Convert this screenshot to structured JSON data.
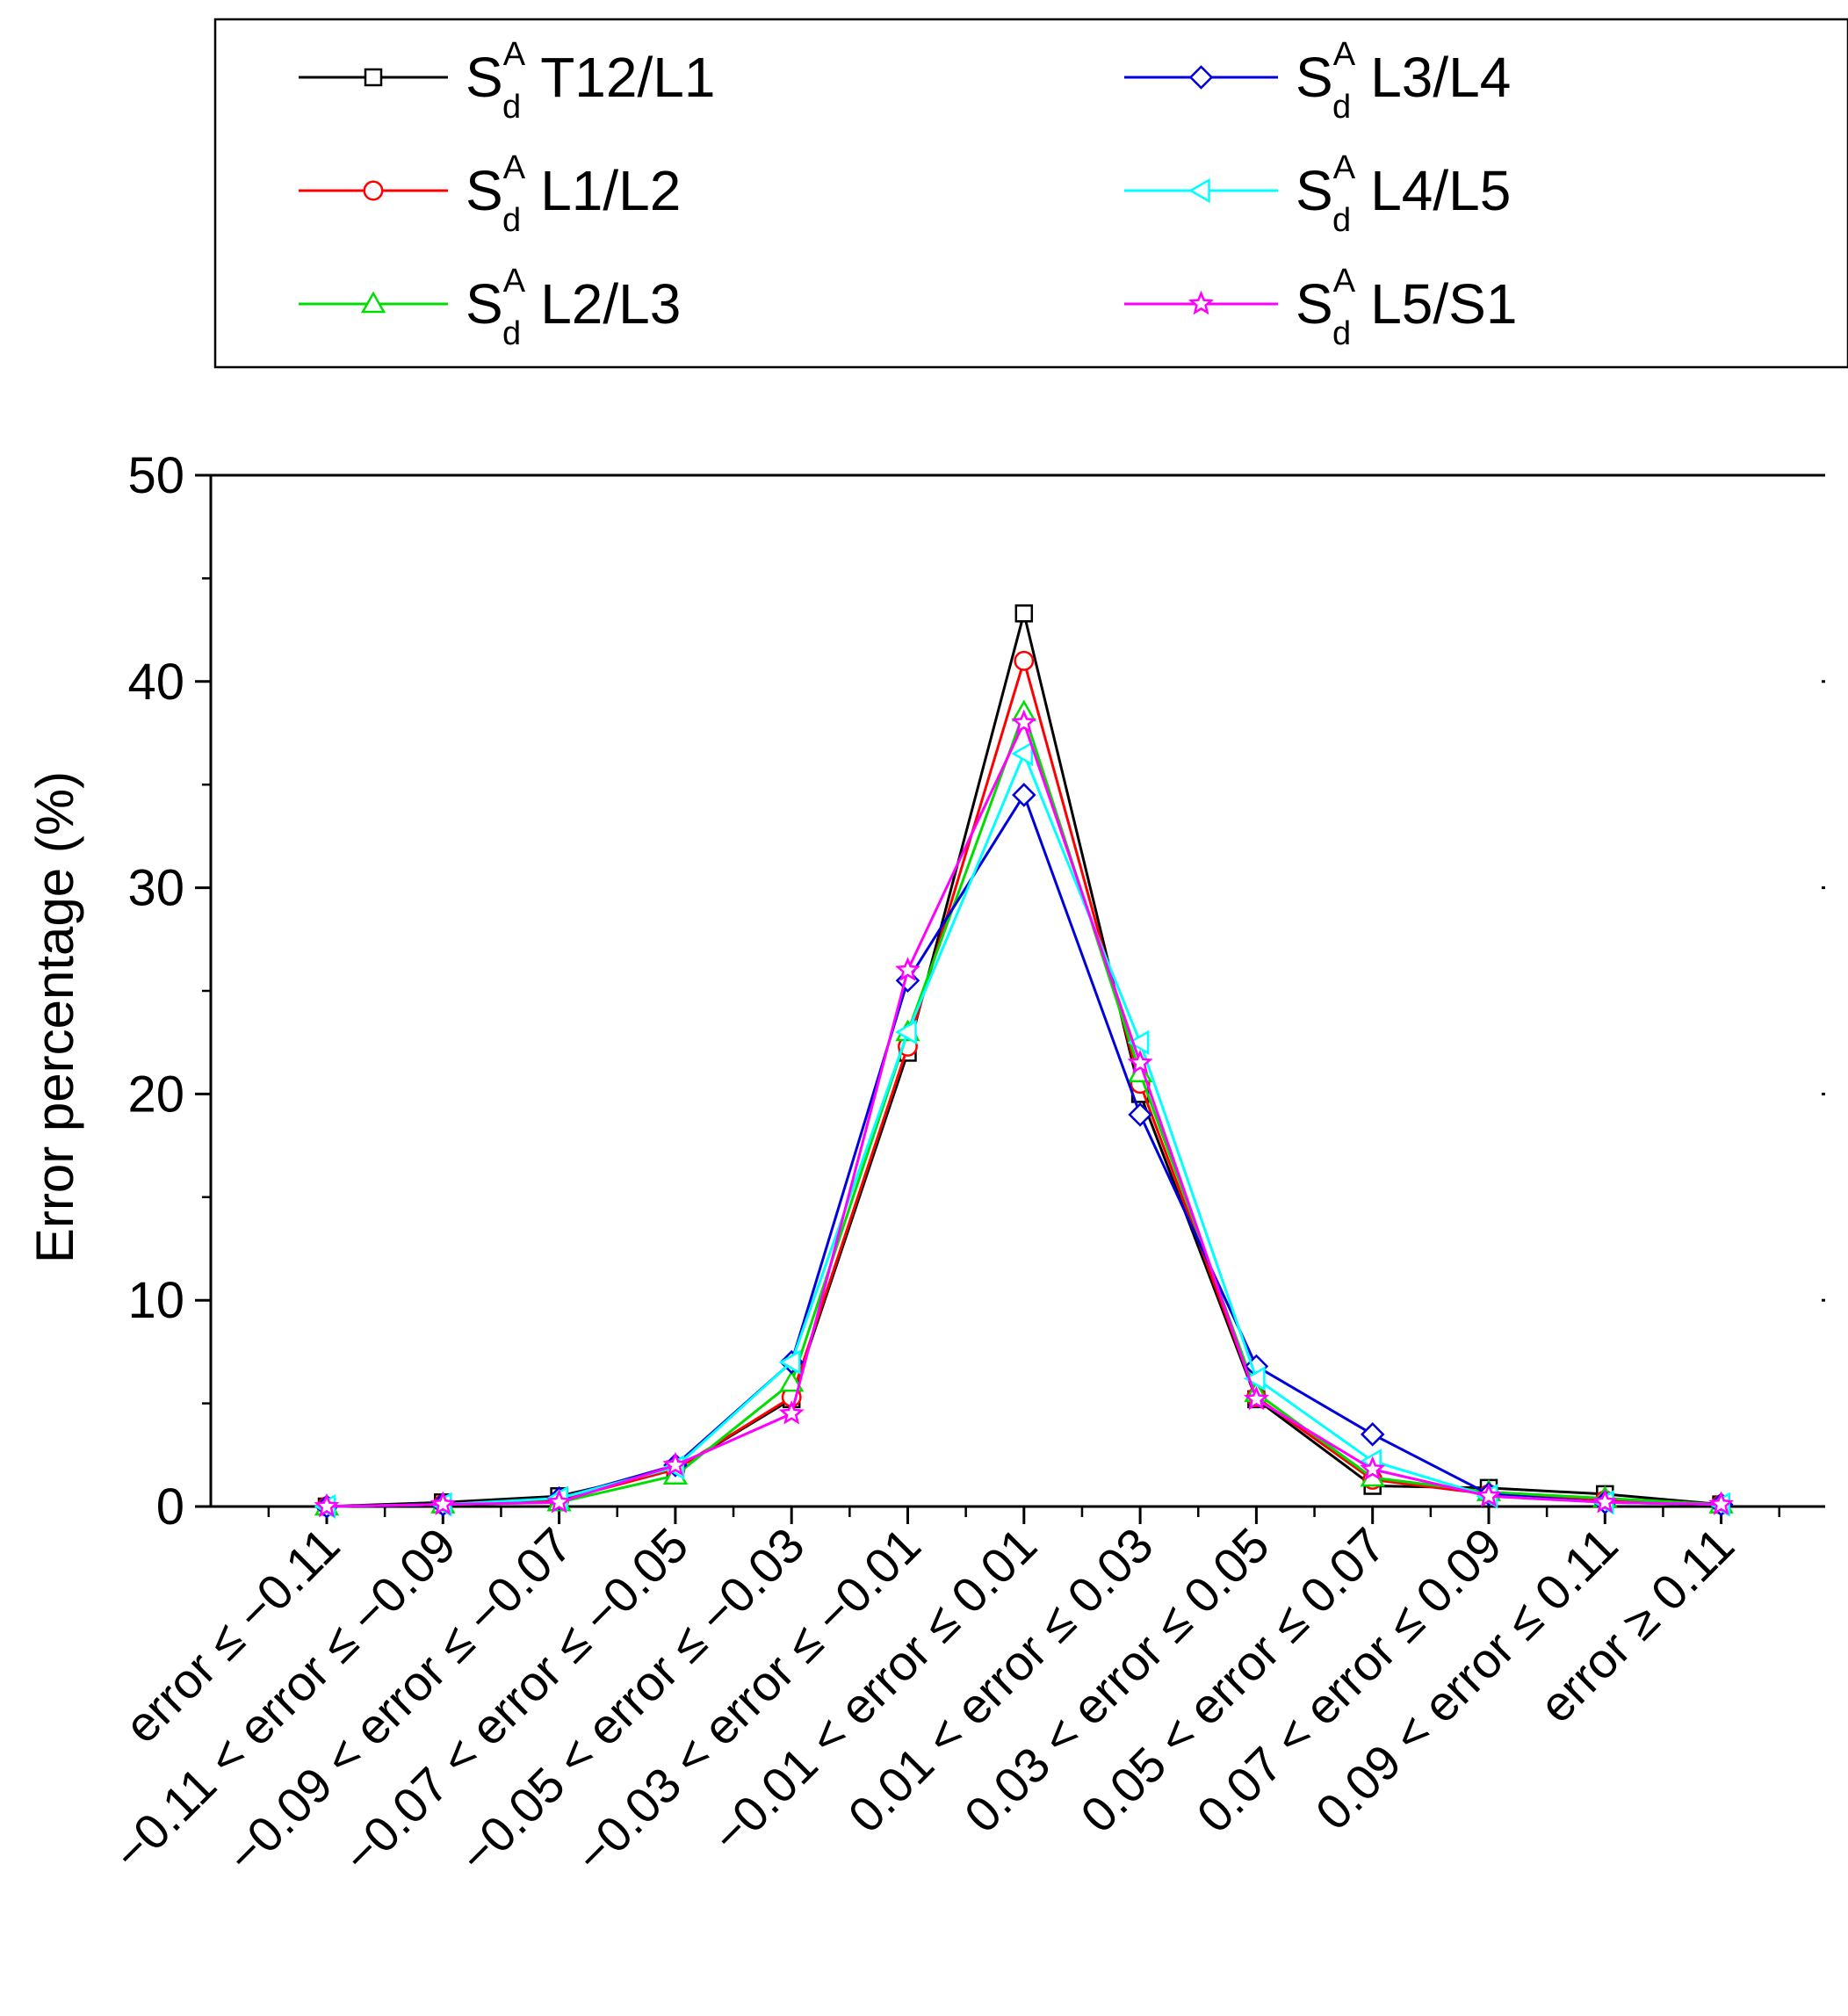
{
  "chart_data": {
    "type": "line",
    "title": "",
    "xlabel": "",
    "ylabel": "Error percentage (%)",
    "ylim": [
      0,
      50
    ],
    "yticks": [
      0,
      10,
      20,
      30,
      40,
      50
    ],
    "grid": false,
    "legend_position": "top",
    "categories": [
      "error ≤ −0.11",
      "−0.11 < error ≤ −0.09",
      "−0.09 < error ≤ −0.07",
      "−0.07 < error ≤ −0.05",
      "−0.05 < error ≤ −0.03",
      "−0.03 < error ≤ −0.01",
      "−0.01 < error ≤ 0.01",
      "0.01 < error ≤ 0.03",
      "0.03 < error ≤ 0.05",
      "0.05 < error ≤ 0.07",
      "0.07 < error ≤ 0.09",
      "0.09 < error ≤ 0.11",
      "error  ≥ 0.11"
    ],
    "series": [
      {
        "name": "T12/L1",
        "symbol": "S",
        "sup": "A",
        "sub": "d",
        "color": "#000000",
        "marker": "square",
        "values": [
          0.0,
          0.2,
          0.5,
          1.8,
          5.2,
          22.0,
          43.3,
          20.0,
          5.2,
          1.0,
          0.9,
          0.6,
          0.1
        ]
      },
      {
        "name": "L1/L2",
        "symbol": "S",
        "sup": "A",
        "sub": "d",
        "color": "#ff0000",
        "marker": "circle",
        "values": [
          0.0,
          0.1,
          0.3,
          1.8,
          5.3,
          22.3,
          41.0,
          20.5,
          5.3,
          1.3,
          0.6,
          0.3,
          0.1
        ]
      },
      {
        "name": "L2/L3",
        "symbol": "S",
        "sup": "A",
        "sub": "d",
        "color": "#00dd00",
        "marker": "triangle-up",
        "values": [
          0.0,
          0.1,
          0.2,
          1.5,
          6.0,
          23.0,
          38.5,
          21.0,
          5.5,
          1.4,
          0.7,
          0.4,
          0.1
        ]
      },
      {
        "name": "L3/L4",
        "symbol": "S",
        "sup": "A",
        "sub": "d",
        "color": "#0000dd",
        "marker": "diamond",
        "values": [
          0.0,
          0.1,
          0.4,
          2.0,
          7.0,
          25.5,
          34.5,
          19.0,
          6.8,
          3.5,
          0.6,
          0.2,
          0.1
        ]
      },
      {
        "name": "L4/L5",
        "symbol": "S",
        "sup": "A",
        "sub": "d",
        "color": "#00ffff",
        "marker": "triangle-left",
        "values": [
          0.0,
          0.1,
          0.4,
          1.9,
          7.0,
          23.0,
          36.5,
          22.5,
          6.2,
          2.2,
          0.5,
          0.2,
          0.1
        ]
      },
      {
        "name": "L5/S1",
        "symbol": "S",
        "sup": "A",
        "sub": "d",
        "color": "#ff00ff",
        "marker": "star",
        "values": [
          0.0,
          0.1,
          0.2,
          2.0,
          4.5,
          26.0,
          38.0,
          21.5,
          5.2,
          1.8,
          0.5,
          0.2,
          0.1
        ]
      }
    ]
  }
}
